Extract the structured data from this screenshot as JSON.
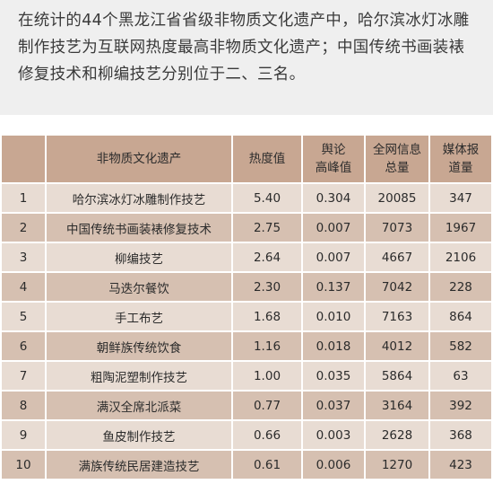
{
  "intro": {
    "lines": [
      "在统计的44个黑龙江省省级非物质文化遗产中，哈尔滨冰灯冰雕",
      "制作技艺为互联网热度最高非物质文化遗产；中国传统书画装裱",
      "修复技术和柳编技艺分别位于二、三名。"
    ]
  },
  "table": {
    "headers": {
      "rank": "",
      "name": "非物质文化遗产",
      "heat": "热度值",
      "peak_l1": "舆论",
      "peak_l2": "高峰值",
      "total_l1": "全网信息",
      "total_l2": "总量",
      "media_l1": "媒体报",
      "media_l2": "道量"
    },
    "rows": [
      {
        "rank": "1",
        "name": "哈尔滨冰灯冰雕制作技艺",
        "heat": "5.40",
        "peak": "0.304",
        "total": "20085",
        "media": "347"
      },
      {
        "rank": "2",
        "name": "中国传统书画装裱修复技术",
        "heat": "2.75",
        "peak": "0.007",
        "total": "7073",
        "media": "1967"
      },
      {
        "rank": "3",
        "name": "柳编技艺",
        "heat": "2.64",
        "peak": "0.007",
        "total": "4667",
        "media": "2106"
      },
      {
        "rank": "4",
        "name": "马迭尔餐饮",
        "heat": "2.30",
        "peak": "0.137",
        "total": "7042",
        "media": "228"
      },
      {
        "rank": "5",
        "name": "手工布艺",
        "heat": "1.68",
        "peak": "0.010",
        "total": "7163",
        "media": "864"
      },
      {
        "rank": "6",
        "name": "朝鲜族传统饮食",
        "heat": "1.16",
        "peak": "0.018",
        "total": "4012",
        "media": "582"
      },
      {
        "rank": "7",
        "name": "粗陶泥塑制作技艺",
        "heat": "1.00",
        "peak": "0.035",
        "total": "5864",
        "media": "63"
      },
      {
        "rank": "8",
        "name": "满汉全席北派菜",
        "heat": "0.77",
        "peak": "0.037",
        "total": "3164",
        "media": "392"
      },
      {
        "rank": "9",
        "name": "鱼皮制作技艺",
        "heat": "0.66",
        "peak": "0.003",
        "total": "2628",
        "media": "368"
      },
      {
        "rank": "10",
        "name": "满族传统民居建造技艺",
        "heat": "0.61",
        "peak": "0.006",
        "total": "1270",
        "media": "423"
      }
    ]
  }
}
